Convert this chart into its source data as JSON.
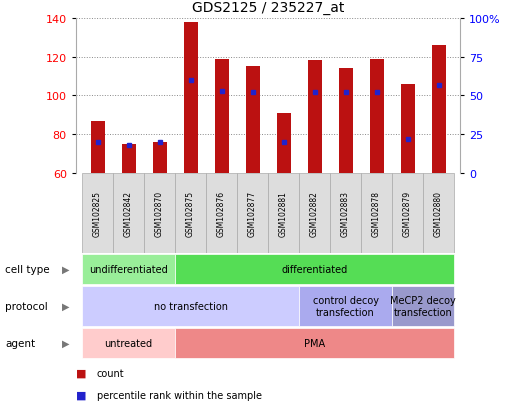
{
  "title": "GDS2125 / 235227_at",
  "samples": [
    "GSM102825",
    "GSM102842",
    "GSM102870",
    "GSM102875",
    "GSM102876",
    "GSM102877",
    "GSM102881",
    "GSM102882",
    "GSM102883",
    "GSM102878",
    "GSM102879",
    "GSM102880"
  ],
  "count_values": [
    87,
    75,
    76,
    138,
    119,
    115,
    91,
    118,
    114,
    119,
    106,
    126
  ],
  "percentile_values": [
    20,
    18,
    20,
    60,
    53,
    52,
    20,
    52,
    52,
    52,
    22,
    57
  ],
  "ylim_left": [
    60,
    140
  ],
  "ylim_right": [
    0,
    100
  ],
  "yticks_left": [
    60,
    80,
    100,
    120,
    140
  ],
  "yticks_right": [
    0,
    25,
    50,
    75,
    100
  ],
  "bar_color": "#bb1111",
  "dot_color": "#2222cc",
  "grid_color": "#888888",
  "cell_type_groups": [
    {
      "label": "undifferentiated",
      "start": 0,
      "end": 3,
      "color": "#99ee99"
    },
    {
      "label": "differentiated",
      "start": 3,
      "end": 12,
      "color": "#55dd55"
    }
  ],
  "protocol_groups": [
    {
      "label": "no transfection",
      "start": 0,
      "end": 7,
      "color": "#ccccff"
    },
    {
      "label": "control decoy\ntransfection",
      "start": 7,
      "end": 10,
      "color": "#aaaaee"
    },
    {
      "label": "MeCP2 decoy\ntransfection",
      "start": 10,
      "end": 12,
      "color": "#9999cc"
    }
  ],
  "agent_groups": [
    {
      "label": "untreated",
      "start": 0,
      "end": 3,
      "color": "#ffcccc"
    },
    {
      "label": "PMA",
      "start": 3,
      "end": 12,
      "color": "#ee8888"
    }
  ],
  "legend_color_count": "#bb1111",
  "legend_color_pct": "#2222cc",
  "legend_label_count": "count",
  "legend_label_pct": "percentile rank within the sample",
  "row_label_fontsize": 8,
  "bar_width": 0.45
}
